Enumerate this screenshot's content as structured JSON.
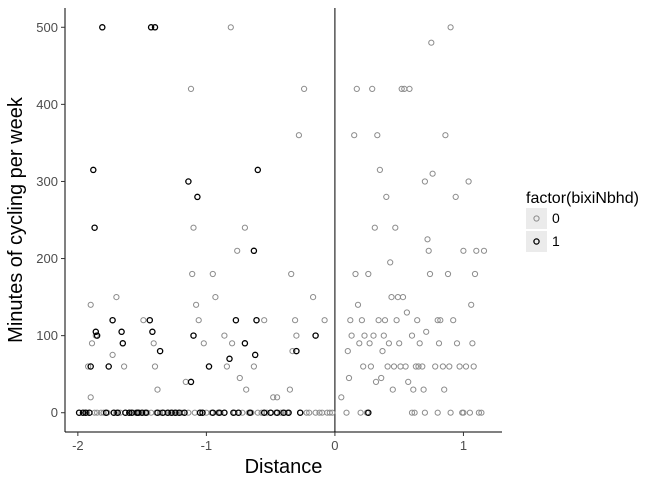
{
  "chart_data": {
    "type": "scatter",
    "title": "",
    "xlabel": "Distance",
    "ylabel": "Minutes of cycling per week",
    "xlim": [
      -2.1,
      1.3
    ],
    "ylim": [
      -25,
      525
    ],
    "x_ticks": [
      -2,
      -1,
      0,
      1
    ],
    "x_tick_labels": [
      "-2",
      "-1",
      "0",
      "1"
    ],
    "y_ticks": [
      0,
      100,
      200,
      300,
      400,
      500
    ],
    "y_tick_labels": [
      "0",
      "100",
      "200",
      "300",
      "400",
      "500"
    ],
    "vline": 0,
    "grid": false,
    "legend": {
      "title": "factor(bixiNbhd)",
      "position": "right",
      "entries": [
        {
          "label": "0",
          "color": "#8c8c8c"
        },
        {
          "label": "1",
          "color": "#000000"
        }
      ]
    },
    "series": [
      {
        "name": "0",
        "color": "#8c8c8c",
        "points": [
          [
            -1.93,
            0
          ],
          [
            -1.92,
            60
          ],
          [
            -1.9,
            140
          ],
          [
            -1.9,
            20
          ],
          [
            -1.89,
            90
          ],
          [
            -1.87,
            0
          ],
          [
            -1.86,
            100
          ],
          [
            -1.85,
            0
          ],
          [
            -1.82,
            0
          ],
          [
            -1.8,
            0
          ],
          [
            -1.77,
            0
          ],
          [
            -1.73,
            75
          ],
          [
            -1.7,
            150
          ],
          [
            -1.7,
            0
          ],
          [
            -1.67,
            0
          ],
          [
            -1.64,
            60
          ],
          [
            -1.6,
            0
          ],
          [
            -1.57,
            0
          ],
          [
            -1.55,
            0
          ],
          [
            -1.52,
            0
          ],
          [
            -1.49,
            120
          ],
          [
            -1.48,
            0
          ],
          [
            -1.46,
            0
          ],
          [
            -1.43,
            0
          ],
          [
            -1.41,
            90
          ],
          [
            -1.4,
            60
          ],
          [
            -1.39,
            0
          ],
          [
            -1.38,
            30
          ],
          [
            -1.36,
            0
          ],
          [
            -1.33,
            0
          ],
          [
            -1.3,
            0
          ],
          [
            -1.28,
            0
          ],
          [
            -1.25,
            0
          ],
          [
            -1.22,
            0
          ],
          [
            -1.19,
            0
          ],
          [
            -1.16,
            40
          ],
          [
            -1.14,
            0
          ],
          [
            -1.12,
            420
          ],
          [
            -1.11,
            180
          ],
          [
            -1.1,
            240
          ],
          [
            -1.09,
            0
          ],
          [
            -1.08,
            140
          ],
          [
            -1.06,
            120
          ],
          [
            -1.05,
            0
          ],
          [
            -1.02,
            90
          ],
          [
            -1.0,
            0
          ],
          [
            -0.98,
            60
          ],
          [
            -0.96,
            0
          ],
          [
            -0.95,
            180
          ],
          [
            -0.93,
            150
          ],
          [
            -0.91,
            0
          ],
          [
            -0.89,
            0
          ],
          [
            -0.86,
            100
          ],
          [
            -0.84,
            60
          ],
          [
            -0.81,
            500
          ],
          [
            -0.8,
            90
          ],
          [
            -0.78,
            0
          ],
          [
            -0.76,
            210
          ],
          [
            -0.74,
            45
          ],
          [
            -0.72,
            0
          ],
          [
            -0.7,
            240
          ],
          [
            -0.69,
            30
          ],
          [
            -0.67,
            0
          ],
          [
            -0.65,
            0
          ],
          [
            -0.63,
            60
          ],
          [
            -0.6,
            0
          ],
          [
            -0.57,
            0
          ],
          [
            -0.55,
            120
          ],
          [
            -0.53,
            0
          ],
          [
            -0.5,
            0
          ],
          [
            -0.48,
            20
          ],
          [
            -0.46,
            0
          ],
          [
            -0.45,
            20
          ],
          [
            -0.42,
            0
          ],
          [
            -0.39,
            0
          ],
          [
            -0.37,
            0
          ],
          [
            -0.35,
            30
          ],
          [
            -0.34,
            180
          ],
          [
            -0.33,
            80
          ],
          [
            -0.31,
            120
          ],
          [
            -0.3,
            100
          ],
          [
            -0.28,
            360
          ],
          [
            -0.27,
            0
          ],
          [
            -0.24,
            420
          ],
          [
            -0.22,
            0
          ],
          [
            -0.2,
            0
          ],
          [
            -0.17,
            150
          ],
          [
            -0.15,
            0
          ],
          [
            -0.12,
            0
          ],
          [
            -0.1,
            0
          ],
          [
            -0.08,
            120
          ],
          [
            -0.06,
            0
          ],
          [
            -0.04,
            0
          ],
          [
            -0.02,
            0
          ],
          [
            0.05,
            20
          ],
          [
            0.09,
            0
          ],
          [
            0.1,
            80
          ],
          [
            0.11,
            45
          ],
          [
            0.12,
            120
          ],
          [
            0.13,
            100
          ],
          [
            0.15,
            360
          ],
          [
            0.16,
            180
          ],
          [
            0.17,
            420
          ],
          [
            0.18,
            140
          ],
          [
            0.19,
            90
          ],
          [
            0.2,
            0
          ],
          [
            0.21,
            120
          ],
          [
            0.22,
            60
          ],
          [
            0.23,
            100
          ],
          [
            0.25,
            0
          ],
          [
            0.26,
            180
          ],
          [
            0.27,
            90
          ],
          [
            0.28,
            60
          ],
          [
            0.29,
            420
          ],
          [
            0.3,
            100
          ],
          [
            0.31,
            240
          ],
          [
            0.32,
            40
          ],
          [
            0.33,
            360
          ],
          [
            0.34,
            120
          ],
          [
            0.35,
            315
          ],
          [
            0.36,
            45
          ],
          [
            0.37,
            80
          ],
          [
            0.38,
            100
          ],
          [
            0.39,
            120
          ],
          [
            0.4,
            280
          ],
          [
            0.41,
            60
          ],
          [
            0.42,
            90
          ],
          [
            0.43,
            195
          ],
          [
            0.44,
            150
          ],
          [
            0.45,
            30
          ],
          [
            0.46,
            60
          ],
          [
            0.47,
            240
          ],
          [
            0.48,
            120
          ],
          [
            0.49,
            150
          ],
          [
            0.5,
            90
          ],
          [
            0.51,
            60
          ],
          [
            0.52,
            420
          ],
          [
            0.53,
            150
          ],
          [
            0.54,
            420
          ],
          [
            0.55,
            60
          ],
          [
            0.56,
            130
          ],
          [
            0.57,
            40
          ],
          [
            0.58,
            420
          ],
          [
            0.6,
            100
          ],
          [
            0.61,
            30
          ],
          [
            0.62,
            0
          ],
          [
            0.63,
            60
          ],
          [
            0.64,
            120
          ],
          [
            0.65,
            60
          ],
          [
            0.66,
            90
          ],
          [
            0.68,
            60
          ],
          [
            0.69,
            30
          ],
          [
            0.7,
            300
          ],
          [
            0.71,
            105
          ],
          [
            0.72,
            225
          ],
          [
            0.73,
            210
          ],
          [
            0.74,
            180
          ],
          [
            0.75,
            480
          ],
          [
            0.76,
            310
          ],
          [
            0.78,
            60
          ],
          [
            0.8,
            120
          ],
          [
            0.81,
            90
          ],
          [
            0.82,
            120
          ],
          [
            0.84,
            60
          ],
          [
            0.85,
            30
          ],
          [
            0.86,
            360
          ],
          [
            0.88,
            180
          ],
          [
            0.89,
            60
          ],
          [
            0.9,
            500
          ],
          [
            0.92,
            120
          ],
          [
            0.94,
            280
          ],
          [
            0.95,
            90
          ],
          [
            0.97,
            60
          ],
          [
            0.99,
            0
          ],
          [
            1.0,
            210
          ],
          [
            1.02,
            60
          ],
          [
            1.04,
            300
          ],
          [
            1.05,
            0
          ],
          [
            1.06,
            140
          ],
          [
            1.07,
            90
          ],
          [
            1.08,
            60
          ],
          [
            1.09,
            180
          ],
          [
            1.1,
            210
          ],
          [
            1.12,
            0
          ],
          [
            1.14,
            0
          ],
          [
            1.16,
            210
          ],
          [
            0.6,
            0
          ],
          [
            0.7,
            0
          ],
          [
            0.8,
            0
          ],
          [
            0.9,
            0
          ],
          [
            1.0,
            0
          ]
        ]
      },
      {
        "name": "1",
        "color": "#000000",
        "points": [
          [
            -1.99,
            0
          ],
          [
            -1.96,
            0
          ],
          [
            -1.94,
            0
          ],
          [
            -1.91,
            0
          ],
          [
            -1.9,
            60
          ],
          [
            -1.88,
            315
          ],
          [
            -1.87,
            240
          ],
          [
            -1.86,
            105
          ],
          [
            -1.85,
            100
          ],
          [
            -1.81,
            500
          ],
          [
            -1.78,
            0
          ],
          [
            -1.76,
            60
          ],
          [
            -1.73,
            120
          ],
          [
            -1.72,
            0
          ],
          [
            -1.69,
            0
          ],
          [
            -1.66,
            105
          ],
          [
            -1.65,
            90
          ],
          [
            -1.63,
            0
          ],
          [
            -1.6,
            0
          ],
          [
            -1.58,
            0
          ],
          [
            -1.54,
            0
          ],
          [
            -1.53,
            0
          ],
          [
            -1.5,
            0
          ],
          [
            -1.47,
            0
          ],
          [
            -1.44,
            120
          ],
          [
            -1.43,
            500
          ],
          [
            -1.42,
            105
          ],
          [
            -1.4,
            500
          ],
          [
            -1.38,
            0
          ],
          [
            -1.36,
            80
          ],
          [
            -1.34,
            0
          ],
          [
            -1.3,
            0
          ],
          [
            -1.27,
            0
          ],
          [
            -1.24,
            0
          ],
          [
            -1.21,
            0
          ],
          [
            -1.17,
            0
          ],
          [
            -1.14,
            300
          ],
          [
            -1.12,
            40
          ],
          [
            -1.1,
            100
          ],
          [
            -1.07,
            280
          ],
          [
            -1.05,
            0
          ],
          [
            -1.03,
            0
          ],
          [
            -0.98,
            60
          ],
          [
            -0.95,
            0
          ],
          [
            -0.9,
            0
          ],
          [
            -0.86,
            0
          ],
          [
            -0.82,
            70
          ],
          [
            -0.79,
            0
          ],
          [
            -0.77,
            120
          ],
          [
            -0.75,
            0
          ],
          [
            -0.7,
            90
          ],
          [
            -0.66,
            0
          ],
          [
            -0.63,
            210
          ],
          [
            -0.62,
            75
          ],
          [
            -0.61,
            120
          ],
          [
            -0.6,
            315
          ],
          [
            -0.55,
            0
          ],
          [
            -0.5,
            0
          ],
          [
            -0.45,
            0
          ],
          [
            -0.4,
            0
          ],
          [
            -0.36,
            0
          ],
          [
            -0.3,
            80
          ],
          [
            -0.27,
            0
          ],
          [
            -0.15,
            100
          ],
          [
            0.26,
            0
          ]
        ]
      }
    ]
  }
}
